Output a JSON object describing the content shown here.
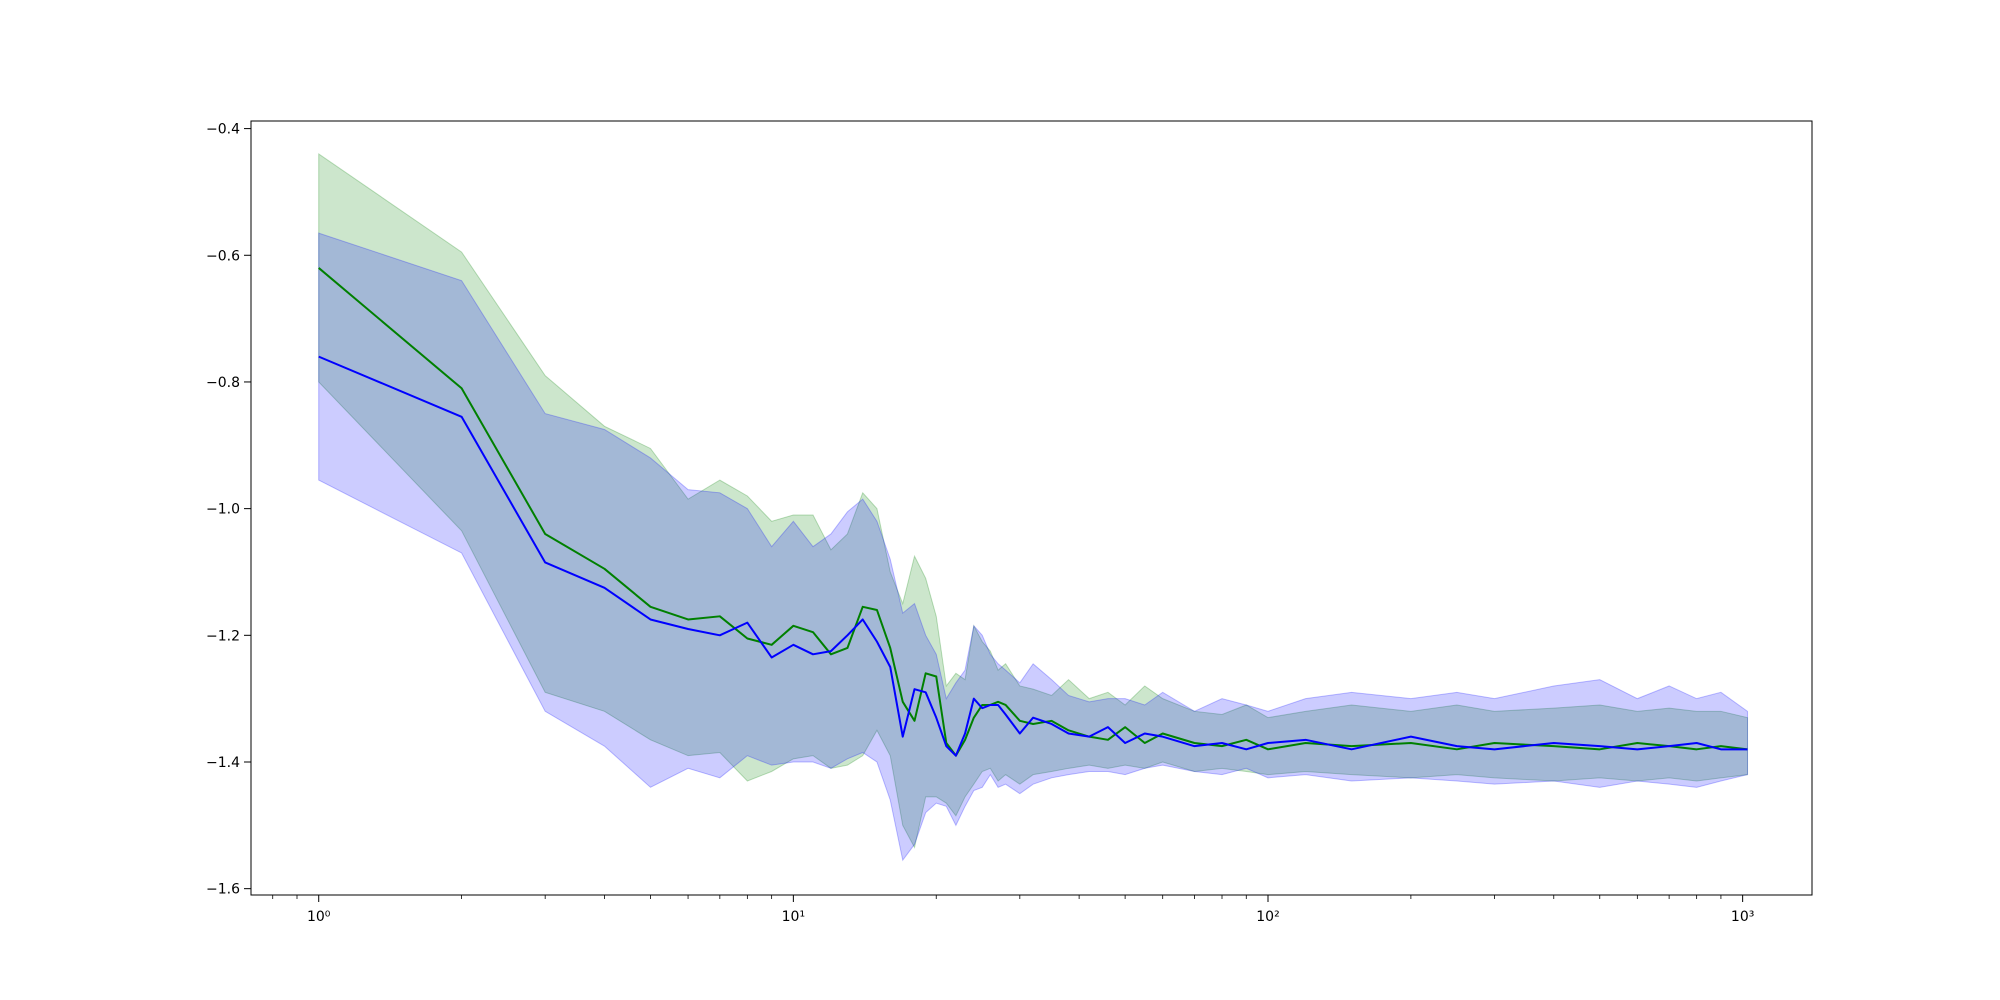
{
  "chart_data": {
    "type": "line",
    "title": "",
    "xlabel": "",
    "ylabel": "",
    "xscale": "log",
    "xlim": [
      0.72,
      1400
    ],
    "ylim": [
      -1.61,
      -0.388
    ],
    "grid": false,
    "legend": "none",
    "x_ticks": [
      {
        "value": 1,
        "label": "10⁰"
      },
      {
        "value": 10,
        "label": "10¹"
      },
      {
        "value": 100,
        "label": "10²"
      },
      {
        "value": 1000,
        "label": "10³"
      }
    ],
    "y_ticks": [
      {
        "value": -0.4,
        "label": "−0.4"
      },
      {
        "value": -0.6,
        "label": "−0.6"
      },
      {
        "value": -0.8,
        "label": "−0.8"
      },
      {
        "value": -1.0,
        "label": "−1.0"
      },
      {
        "value": -1.2,
        "label": "−1.2"
      },
      {
        "value": -1.4,
        "label": "−1.4"
      },
      {
        "value": -1.6,
        "label": "−1.6"
      }
    ],
    "series": [
      {
        "color": "#008000",
        "band_color": "#008000",
        "band_opacity": 0.2,
        "x": [
          1,
          2,
          3,
          4,
          5,
          6,
          7,
          8,
          9,
          10,
          11,
          12,
          13,
          14,
          15,
          16,
          17,
          18,
          19,
          20,
          21,
          22,
          23,
          24,
          25,
          26,
          27,
          28,
          30,
          32,
          35,
          38,
          42,
          46,
          50,
          55,
          60,
          70,
          80,
          90,
          100,
          120,
          150,
          200,
          250,
          300,
          400,
          500,
          600,
          700,
          800,
          900,
          1024
        ],
        "values": [
          -0.62,
          -0.81,
          -1.04,
          -1.095,
          -1.155,
          -1.175,
          -1.17,
          -1.205,
          -1.215,
          -1.185,
          -1.195,
          -1.23,
          -1.22,
          -1.155,
          -1.16,
          -1.22,
          -1.305,
          -1.335,
          -1.26,
          -1.265,
          -1.37,
          -1.39,
          -1.365,
          -1.33,
          -1.31,
          -1.31,
          -1.305,
          -1.31,
          -1.335,
          -1.34,
          -1.335,
          -1.35,
          -1.36,
          -1.365,
          -1.345,
          -1.37,
          -1.355,
          -1.37,
          -1.375,
          -1.365,
          -1.38,
          -1.37,
          -1.375,
          -1.37,
          -1.38,
          -1.37,
          -1.375,
          -1.38,
          -1.37,
          -1.375,
          -1.38,
          -1.375,
          -1.38
        ],
        "upper": [
          -0.44,
          -0.595,
          -0.79,
          -0.87,
          -0.905,
          -0.985,
          -0.955,
          -0.98,
          -1.02,
          -1.01,
          -1.01,
          -1.065,
          -1.04,
          -0.975,
          -1.0,
          -1.1,
          -1.15,
          -1.075,
          -1.11,
          -1.17,
          -1.28,
          -1.26,
          -1.27,
          -1.185,
          -1.21,
          -1.225,
          -1.255,
          -1.245,
          -1.28,
          -1.285,
          -1.295,
          -1.27,
          -1.3,
          -1.29,
          -1.31,
          -1.28,
          -1.3,
          -1.32,
          -1.325,
          -1.31,
          -1.33,
          -1.32,
          -1.31,
          -1.32,
          -1.31,
          -1.32,
          -1.315,
          -1.31,
          -1.32,
          -1.315,
          -1.32,
          -1.32,
          -1.33
        ],
        "lower": [
          -0.8,
          -1.035,
          -1.29,
          -1.32,
          -1.365,
          -1.39,
          -1.385,
          -1.43,
          -1.415,
          -1.395,
          -1.39,
          -1.41,
          -1.405,
          -1.39,
          -1.35,
          -1.39,
          -1.5,
          -1.535,
          -1.455,
          -1.455,
          -1.465,
          -1.485,
          -1.455,
          -1.435,
          -1.415,
          -1.41,
          -1.43,
          -1.42,
          -1.435,
          -1.42,
          -1.415,
          -1.41,
          -1.405,
          -1.41,
          -1.405,
          -1.41,
          -1.4,
          -1.415,
          -1.41,
          -1.415,
          -1.42,
          -1.415,
          -1.42,
          -1.425,
          -1.42,
          -1.425,
          -1.43,
          -1.425,
          -1.43,
          -1.425,
          -1.43,
          -1.425,
          -1.42
        ]
      },
      {
        "color": "#0000ff",
        "band_color": "#0000ff",
        "band_opacity": 0.2,
        "x": [
          1,
          2,
          3,
          4,
          5,
          6,
          7,
          8,
          9,
          10,
          11,
          12,
          13,
          14,
          15,
          16,
          17,
          18,
          19,
          20,
          21,
          22,
          23,
          24,
          25,
          26,
          27,
          28,
          30,
          32,
          35,
          38,
          42,
          46,
          50,
          55,
          60,
          70,
          80,
          90,
          100,
          120,
          150,
          200,
          250,
          300,
          400,
          500,
          600,
          700,
          800,
          900,
          1024
        ],
        "values": [
          -0.76,
          -0.855,
          -1.085,
          -1.125,
          -1.175,
          -1.19,
          -1.2,
          -1.18,
          -1.235,
          -1.215,
          -1.23,
          -1.225,
          -1.2,
          -1.175,
          -1.21,
          -1.25,
          -1.36,
          -1.285,
          -1.29,
          -1.33,
          -1.375,
          -1.39,
          -1.355,
          -1.3,
          -1.315,
          -1.31,
          -1.31,
          -1.325,
          -1.355,
          -1.33,
          -1.34,
          -1.355,
          -1.36,
          -1.345,
          -1.37,
          -1.355,
          -1.36,
          -1.375,
          -1.37,
          -1.38,
          -1.37,
          -1.365,
          -1.38,
          -1.36,
          -1.375,
          -1.38,
          -1.37,
          -1.375,
          -1.38,
          -1.375,
          -1.37,
          -1.38,
          -1.38
        ],
        "upper": [
          -0.565,
          -0.64,
          -0.85,
          -0.875,
          -0.92,
          -0.97,
          -0.975,
          -1.0,
          -1.06,
          -1.02,
          -1.06,
          -1.04,
          -1.005,
          -0.985,
          -1.02,
          -1.08,
          -1.165,
          -1.15,
          -1.2,
          -1.23,
          -1.3,
          -1.275,
          -1.255,
          -1.185,
          -1.2,
          -1.23,
          -1.245,
          -1.255,
          -1.275,
          -1.245,
          -1.27,
          -1.295,
          -1.305,
          -1.3,
          -1.3,
          -1.31,
          -1.29,
          -1.32,
          -1.3,
          -1.31,
          -1.32,
          -1.3,
          -1.29,
          -1.3,
          -1.29,
          -1.3,
          -1.28,
          -1.27,
          -1.3,
          -1.28,
          -1.3,
          -1.29,
          -1.32
        ],
        "lower": [
          -0.955,
          -1.07,
          -1.32,
          -1.375,
          -1.44,
          -1.41,
          -1.425,
          -1.39,
          -1.405,
          -1.4,
          -1.4,
          -1.41,
          -1.395,
          -1.385,
          -1.4,
          -1.46,
          -1.555,
          -1.53,
          -1.48,
          -1.465,
          -1.47,
          -1.5,
          -1.47,
          -1.445,
          -1.44,
          -1.42,
          -1.44,
          -1.435,
          -1.45,
          -1.435,
          -1.425,
          -1.42,
          -1.415,
          -1.415,
          -1.42,
          -1.41,
          -1.405,
          -1.415,
          -1.42,
          -1.41,
          -1.425,
          -1.42,
          -1.43,
          -1.425,
          -1.43,
          -1.435,
          -1.43,
          -1.44,
          -1.43,
          -1.435,
          -1.44,
          -1.43,
          -1.42
        ]
      }
    ]
  }
}
